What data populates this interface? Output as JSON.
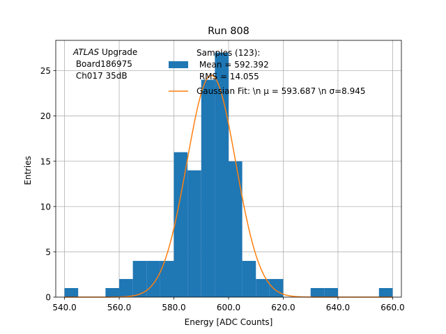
{
  "chart_data": {
    "type": "bar",
    "title": "Run 808",
    "xlabel": "Energy [ADC Counts]",
    "ylabel": "Entries",
    "xlim": [
      536.8,
      663.2
    ],
    "ylim": [
      0,
      28.35
    ],
    "x_ticks": [
      540,
      560,
      580,
      600,
      620,
      640,
      660
    ],
    "x_tick_labels": [
      "540.0",
      "560.0",
      "580.0",
      "600.0",
      "620.0",
      "640.0",
      "660.0"
    ],
    "y_ticks": [
      0,
      5,
      10,
      15,
      20,
      25
    ],
    "y_tick_labels": [
      "0",
      "5",
      "10",
      "15",
      "20",
      "25"
    ],
    "grid": true,
    "bin_edges": [
      540,
      545,
      550,
      555,
      560,
      565,
      570,
      575,
      580,
      585,
      590,
      595,
      600,
      605,
      610,
      615,
      620,
      625,
      630,
      635,
      640,
      645,
      650,
      655,
      660
    ],
    "series": [
      {
        "name": "Samples (123):\n Mean = 592.392\n RMS = 14.055",
        "type": "histogram",
        "color": "#1f77b4",
        "values": [
          1,
          0,
          0,
          1,
          2,
          4,
          4,
          4,
          16,
          14,
          24,
          27,
          15,
          4,
          2,
          2,
          0,
          0,
          1,
          1,
          0,
          0,
          0,
          1
        ]
      },
      {
        "name": "Gaussian Fit: \\n $\\mu$ = 593.687 \\n $\\sigma$=8.945",
        "type": "line",
        "color": "#ff7f0e",
        "fit": {
          "mu": 593.687,
          "sigma": 8.945,
          "amplitude": 24.5,
          "x_range": [
            540,
            660
          ]
        }
      }
    ],
    "annotation": {
      "line1_italic": "ATLAS",
      "line1_rest": " Upgrade",
      "line2": " Board186975",
      "line3": " Ch017 35dB"
    },
    "legend": {
      "placement": "top-right",
      "entries": [
        {
          "lines": [
            "Samples (123):",
            " Mean = 592.392",
            " RMS = 14.055"
          ],
          "marker": "patch",
          "color": "#1f77b4"
        },
        {
          "lines": [
            "Gaussian Fit: \\n μ = 593.687 \\n σ=8.945"
          ],
          "marker": "line",
          "color": "#ff7f0e"
        }
      ]
    }
  }
}
